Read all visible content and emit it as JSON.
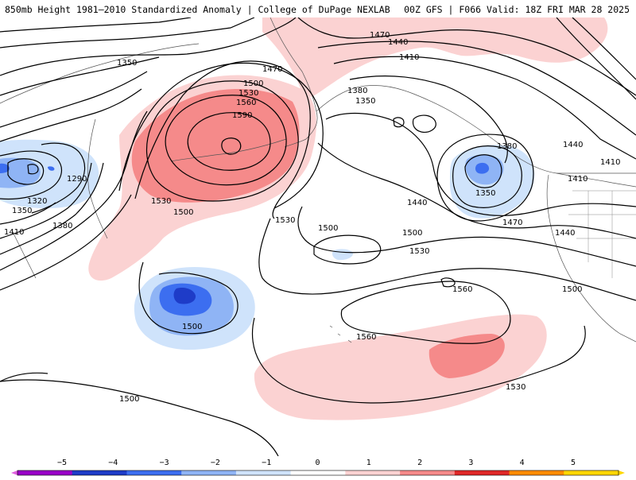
{
  "header": {
    "title": "850mb Height 1981–2010 Standardized Anomaly | College of DuPage NEXLAB",
    "valid": "00Z GFS | F066 Valid: 18Z FRI MAR 28 2025"
  },
  "contour_labels": {
    "c1290": "1290",
    "c1320": "1320",
    "c1350": "1350",
    "c1380": "1380",
    "c1410": "1410",
    "c1440": "1440",
    "c1470": "1470",
    "c1500": "1500",
    "c1530": "1530",
    "c1560": "1560",
    "c1590": "1590"
  },
  "colorbar": {
    "ticks": [
      "−5",
      "−4",
      "−3",
      "−2",
      "−1",
      "0",
      "1",
      "2",
      "3",
      "4",
      "5"
    ],
    "colors": [
      "#9a00c8",
      "#1e3cc8",
      "#3c6ef0",
      "#8fb4f5",
      "#cfe3fb",
      "#ffffff",
      "#fbd2d2",
      "#f58a8a",
      "#e02828",
      "#ff8c00",
      "#ffd700"
    ]
  }
}
